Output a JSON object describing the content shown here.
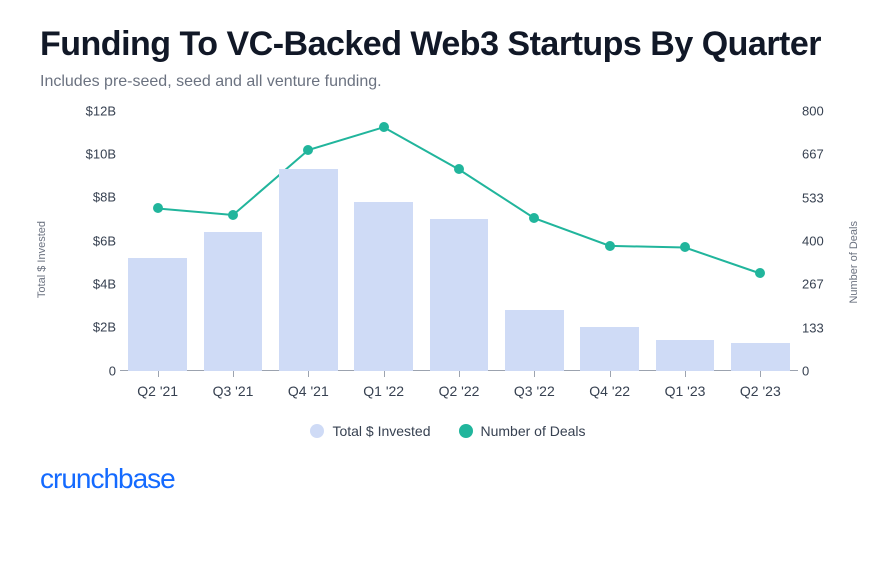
{
  "title": "Funding To VC-Backed Web3 Startups By Quarter",
  "subtitle": "Includes pre-seed, seed and all venture funding.",
  "chart": {
    "type": "bar+line",
    "categories": [
      "Q2 '21",
      "Q3 '21",
      "Q4 '21",
      "Q1 '22",
      "Q2 '22",
      "Q3 '22",
      "Q4 '22",
      "Q1 '23",
      "Q2 '23"
    ],
    "bars": {
      "label": "Total $ Invested",
      "values": [
        5.2,
        6.4,
        9.3,
        7.8,
        7.0,
        2.8,
        2.0,
        1.4,
        1.3
      ],
      "color": "#cfdbf6",
      "bar_width_frac": 0.78
    },
    "line": {
      "label": "Number of Deals",
      "values": [
        500,
        480,
        680,
        750,
        620,
        470,
        385,
        380,
        300
      ],
      "color": "#21b59c",
      "marker_radius": 5,
      "line_width": 2
    },
    "y_left": {
      "label": "Total $ Invested",
      "min": 0,
      "max": 12,
      "ticks": [
        0,
        2,
        4,
        6,
        8,
        10,
        12
      ],
      "tick_labels": [
        "0",
        "$2B",
        "$4B",
        "$6B",
        "$8B",
        "$10B",
        "$12B"
      ]
    },
    "y_right": {
      "label": "Number of Deals",
      "min": 0,
      "max": 800,
      "ticks": [
        0,
        133,
        267,
        400,
        533,
        667,
        800
      ]
    },
    "axis_color": "#9ca3af",
    "tick_font_size": 13,
    "background_color": "#ffffff"
  },
  "legend": {
    "items": [
      {
        "label": "Total $ Invested",
        "color": "#cfdbf6"
      },
      {
        "label": "Number of Deals",
        "color": "#21b59c"
      }
    ]
  },
  "brand": "crunchbase",
  "brand_color": "#146aff"
}
